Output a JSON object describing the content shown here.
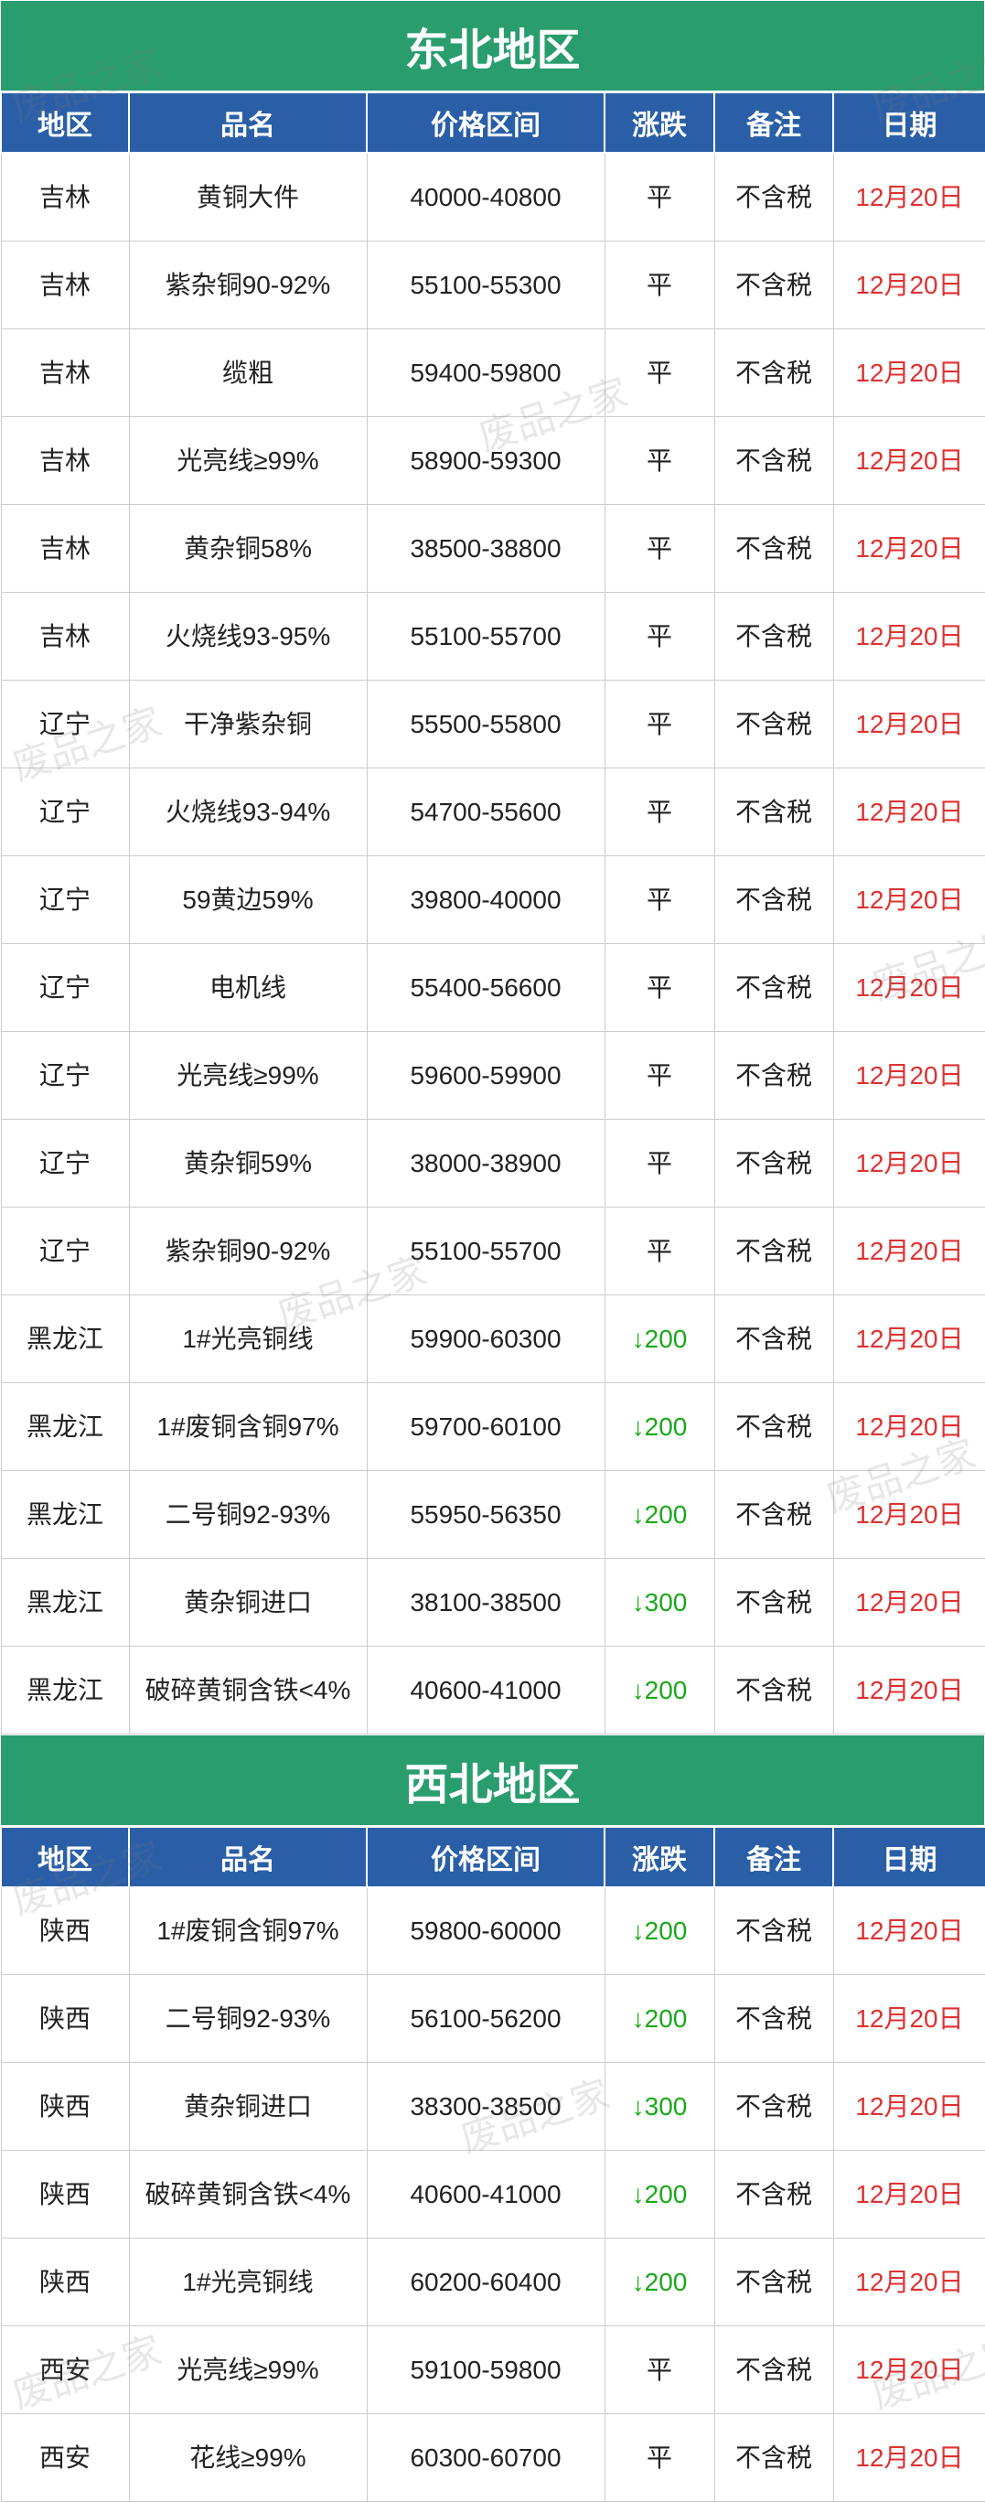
{
  "watermark_text": "废品之家",
  "columns": [
    "地区",
    "品名",
    "价格区间",
    "涨跌",
    "备注",
    "日期"
  ],
  "sections": [
    {
      "title": "东北地区",
      "rows": [
        {
          "region": "吉林",
          "name": "黄铜大件",
          "price": "40000-40800",
          "change": "平",
          "change_type": "flat",
          "note": "不含税",
          "date": "12月20日"
        },
        {
          "region": "吉林",
          "name": "紫杂铜90-92%",
          "price": "55100-55300",
          "change": "平",
          "change_type": "flat",
          "note": "不含税",
          "date": "12月20日"
        },
        {
          "region": "吉林",
          "name": "缆粗",
          "price": "59400-59800",
          "change": "平",
          "change_type": "flat",
          "note": "不含税",
          "date": "12月20日"
        },
        {
          "region": "吉林",
          "name": "光亮线≥99%",
          "price": "58900-59300",
          "change": "平",
          "change_type": "flat",
          "note": "不含税",
          "date": "12月20日"
        },
        {
          "region": "吉林",
          "name": "黄杂铜58%",
          "price": "38500-38800",
          "change": "平",
          "change_type": "flat",
          "note": "不含税",
          "date": "12月20日"
        },
        {
          "region": "吉林",
          "name": "火烧线93-95%",
          "price": "55100-55700",
          "change": "平",
          "change_type": "flat",
          "note": "不含税",
          "date": "12月20日"
        },
        {
          "region": "辽宁",
          "name": "干净紫杂铜",
          "price": "55500-55800",
          "change": "平",
          "change_type": "flat",
          "note": "不含税",
          "date": "12月20日"
        },
        {
          "region": "辽宁",
          "name": "火烧线93-94%",
          "price": "54700-55600",
          "change": "平",
          "change_type": "flat",
          "note": "不含税",
          "date": "12月20日"
        },
        {
          "region": "辽宁",
          "name": "59黄边59%",
          "price": "39800-40000",
          "change": "平",
          "change_type": "flat",
          "note": "不含税",
          "date": "12月20日"
        },
        {
          "region": "辽宁",
          "name": "电机线",
          "price": "55400-56600",
          "change": "平",
          "change_type": "flat",
          "note": "不含税",
          "date": "12月20日"
        },
        {
          "region": "辽宁",
          "name": "光亮线≥99%",
          "price": "59600-59900",
          "change": "平",
          "change_type": "flat",
          "note": "不含税",
          "date": "12月20日"
        },
        {
          "region": "辽宁",
          "name": "黄杂铜59%",
          "price": "38000-38900",
          "change": "平",
          "change_type": "flat",
          "note": "不含税",
          "date": "12月20日"
        },
        {
          "region": "辽宁",
          "name": "紫杂铜90-92%",
          "price": "55100-55700",
          "change": "平",
          "change_type": "flat",
          "note": "不含税",
          "date": "12月20日"
        },
        {
          "region": "黑龙江",
          "name": "1#光亮铜线",
          "price": "59900-60300",
          "change": "↓200",
          "change_type": "down",
          "note": "不含税",
          "date": "12月20日"
        },
        {
          "region": "黑龙江",
          "name": "1#废铜含铜97%",
          "price": "59700-60100",
          "change": "↓200",
          "change_type": "down",
          "note": "不含税",
          "date": "12月20日"
        },
        {
          "region": "黑龙江",
          "name": "二号铜92-93%",
          "price": "55950-56350",
          "change": "↓200",
          "change_type": "down",
          "note": "不含税",
          "date": "12月20日"
        },
        {
          "region": "黑龙江",
          "name": "黄杂铜进口",
          "price": "38100-38500",
          "change": "↓300",
          "change_type": "down",
          "note": "不含税",
          "date": "12月20日"
        },
        {
          "region": "黑龙江",
          "name": "破碎黄铜含铁<4%",
          "price": "40600-41000",
          "change": "↓200",
          "change_type": "down",
          "note": "不含税",
          "date": "12月20日"
        }
      ]
    },
    {
      "title": "西北地区",
      "rows": [
        {
          "region": "陕西",
          "name": "1#废铜含铜97%",
          "price": "59800-60000",
          "change": "↓200",
          "change_type": "down",
          "note": "不含税",
          "date": "12月20日"
        },
        {
          "region": "陕西",
          "name": "二号铜92-93%",
          "price": "56100-56200",
          "change": "↓200",
          "change_type": "down",
          "note": "不含税",
          "date": "12月20日"
        },
        {
          "region": "陕西",
          "name": "黄杂铜进口",
          "price": "38300-38500",
          "change": "↓300",
          "change_type": "down",
          "note": "不含税",
          "date": "12月20日"
        },
        {
          "region": "陕西",
          "name": "破碎黄铜含铁<4%",
          "price": "40600-41000",
          "change": "↓200",
          "change_type": "down",
          "note": "不含税",
          "date": "12月20日"
        },
        {
          "region": "陕西",
          "name": "1#光亮铜线",
          "price": "60200-60400",
          "change": "↓200",
          "change_type": "down",
          "note": "不含税",
          "date": "12月20日"
        },
        {
          "region": "西安",
          "name": "光亮线≥99%",
          "price": "59100-59800",
          "change": "平",
          "change_type": "flat",
          "note": "不含税",
          "date": "12月20日"
        },
        {
          "region": "西安",
          "name": "花线≥99%",
          "price": "60300-60700",
          "change": "平",
          "change_type": "flat",
          "note": "不含税",
          "date": "12月20日"
        }
      ]
    }
  ],
  "colors": {
    "title_bg": "#2a9d6f",
    "header_bg": "#2a5fa8",
    "date_text": "#e03030",
    "down_text": "#1aa81a"
  }
}
